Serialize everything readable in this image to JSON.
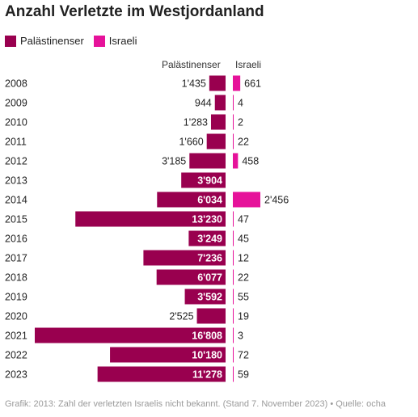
{
  "title": "Anzahl Verletzte im Westjordanland",
  "legend": [
    {
      "label": "Palästinenser",
      "color": "#99004f"
    },
    {
      "label": "Israeli",
      "color": "#e6129a"
    }
  ],
  "column_headers": {
    "left": "Palästinenser",
    "right": "Israeli"
  },
  "footer": "Grafik: 2013: Zahl der verletzten Israelis nicht bekannt. (Stand 7. November 2023) • Quelle: ocha",
  "chart_data": {
    "type": "bar",
    "title": "Anzahl Verletzte im Westjordanland",
    "categories": [
      "2008",
      "2009",
      "2010",
      "2011",
      "2012",
      "2013",
      "2014",
      "2015",
      "2016",
      "2017",
      "2018",
      "2019",
      "2020",
      "2021",
      "2022",
      "2023"
    ],
    "series": [
      {
        "name": "Palästinenser",
        "color": "#99004f",
        "values": [
          1435,
          944,
          1283,
          1660,
          3185,
          3904,
          6034,
          13230,
          3249,
          7236,
          6077,
          3592,
          2525,
          16808,
          10180,
          11278
        ],
        "labels": [
          "1'435",
          "944",
          "1'283",
          "1'660",
          "3'185",
          "3'904",
          "6'034",
          "13'230",
          "3'249",
          "7'236",
          "6'077",
          "3'592",
          "2'525",
          "16'808",
          "10'180",
          "11'278"
        ]
      },
      {
        "name": "Israeli",
        "color": "#e6129a",
        "values": [
          661,
          4,
          2,
          22,
          458,
          null,
          2456,
          47,
          45,
          12,
          22,
          55,
          19,
          3,
          72,
          59
        ],
        "labels": [
          "661",
          "4",
          "2",
          "22",
          "458",
          "",
          "2'456",
          "47",
          "45",
          "12",
          "22",
          "55",
          "19",
          "3",
          "72",
          "59"
        ]
      }
    ]
  }
}
